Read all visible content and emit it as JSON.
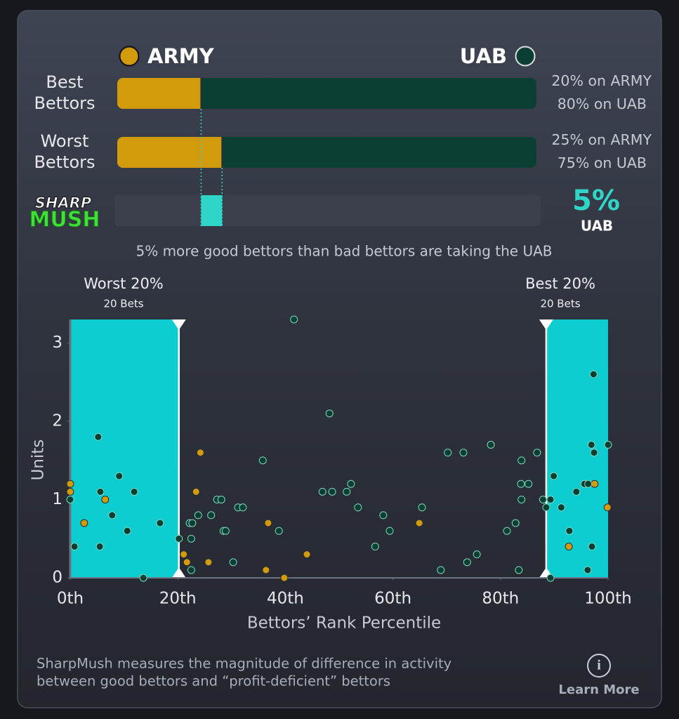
{
  "matchup": {
    "teams": [
      {
        "name": "ARMY",
        "color": "#d19b0b"
      },
      {
        "name": "UAB",
        "color": "#0b3f34"
      }
    ],
    "rows": [
      {
        "label_lines": [
          "Best",
          "Bettors"
        ],
        "army": 20,
        "uab": 80,
        "army_label": "20% on ARMY",
        "uab_label": "80% on UAB"
      },
      {
        "label_lines": [
          "Worst",
          "Bettors"
        ],
        "army": 25,
        "uab": 75,
        "army_label": "25% on ARMY",
        "uab_label": "75% on UAB"
      }
    ]
  },
  "sharpmush": {
    "logo_lines": [
      "SHARP",
      "MUSH"
    ],
    "value": 5,
    "value_label": "5%",
    "team": "UAB",
    "color": "#2fd6c8",
    "caption": "5% more good bettors than bad bettors are taking the UAB"
  },
  "chart_data": {
    "type": "scatter",
    "x_label": "Bettors’ Rank Percentile",
    "y_label": "Units",
    "xlim": [
      0,
      100
    ],
    "ylim": [
      0,
      3.3
    ],
    "xticks": [
      {
        "value": 0,
        "label": "0th"
      },
      {
        "value": 20,
        "label": "20th"
      },
      {
        "value": 40,
        "label": "40th"
      },
      {
        "value": 60,
        "label": "60th"
      },
      {
        "value": 80,
        "label": "80th"
      },
      {
        "value": 100,
        "label": "100th"
      }
    ],
    "yticks": [
      0,
      1,
      2,
      3
    ],
    "bands": [
      {
        "label": "Worst 20%",
        "sublabel": "20 Bets",
        "range": [
          0,
          20.2
        ],
        "color": "#0ecdd0"
      },
      {
        "label": "Best 20%",
        "sublabel": "20 Bets",
        "range": [
          88.5,
          100
        ],
        "color": "#0ecdd0"
      }
    ],
    "series": [
      {
        "name": "ARMY",
        "color": "#d19b0b",
        "x": [
          0,
          0,
          2.6,
          6.5,
          24.2,
          23.4,
          21.1,
          21.7,
          25.7,
          36.8,
          36.4,
          39.8,
          44,
          64.9,
          92.7,
          97.5,
          99.9
        ],
        "values": [
          1.2,
          1.1,
          0.7,
          1.0,
          1.6,
          1.1,
          0.3,
          0.2,
          0.2,
          0.7,
          0.1,
          0,
          0.3,
          0.7,
          0.4,
          1.2,
          0.9
        ]
      },
      {
        "name": "UAB",
        "color": "#0b3f34",
        "x": [
          0.8,
          0,
          5.2,
          5.6,
          5.5,
          7.8,
          9.1,
          10.6,
          11.9,
          13.6,
          16.7,
          20.2,
          22.2,
          22.7,
          22.5,
          22.5,
          23.8,
          26.2,
          27.3,
          28.1,
          28.5,
          28.9,
          30.3,
          31.2,
          32.1,
          35.8,
          38.8,
          41.6,
          46.9,
          48.2,
          48.7,
          51.4,
          52.2,
          53.5,
          56.7,
          58.2,
          59.4,
          65.4,
          68.9,
          70.2,
          73.1,
          73.8,
          75.6,
          78.2,
          81.2,
          82.8,
          83.4,
          83.9,
          83.8,
          83.9,
          85.2,
          86.8,
          87.9,
          88.5,
          89.3,
          89.3,
          89.9,
          91.3,
          92.8,
          94.1,
          95.6,
          96.3,
          96.2,
          96.9,
          97.3,
          97.4,
          97.0,
          100
        ],
        "values": [
          0.4,
          1.0,
          1.8,
          1.1,
          0.4,
          0.8,
          1.3,
          0.6,
          1.1,
          0,
          0.7,
          0.5,
          0.7,
          0.7,
          0.5,
          0.1,
          0.8,
          0.8,
          1.0,
          1.0,
          0.6,
          0.6,
          0.2,
          0.9,
          0.9,
          1.5,
          0.6,
          3.3,
          1.1,
          2.1,
          1.1,
          1.1,
          1.2,
          0.9,
          0.4,
          0.8,
          0.6,
          0.9,
          0.1,
          1.6,
          1.6,
          0.2,
          0.3,
          1.7,
          0.6,
          0.7,
          0.1,
          1.5,
          1.2,
          1.0,
          1.2,
          1.6,
          1.0,
          0.9,
          1.0,
          0,
          1.3,
          0.9,
          0.6,
          1.1,
          1.2,
          1.2,
          0.1,
          1.7,
          2.6,
          1.6,
          0.4,
          1.7
        ]
      }
    ]
  },
  "footer": {
    "lines": [
      "SharpMush measures the magnitude of difference in activity",
      "between good bettors and “profit-deficient” bettors"
    ],
    "icon": "i",
    "link": "Learn More"
  }
}
